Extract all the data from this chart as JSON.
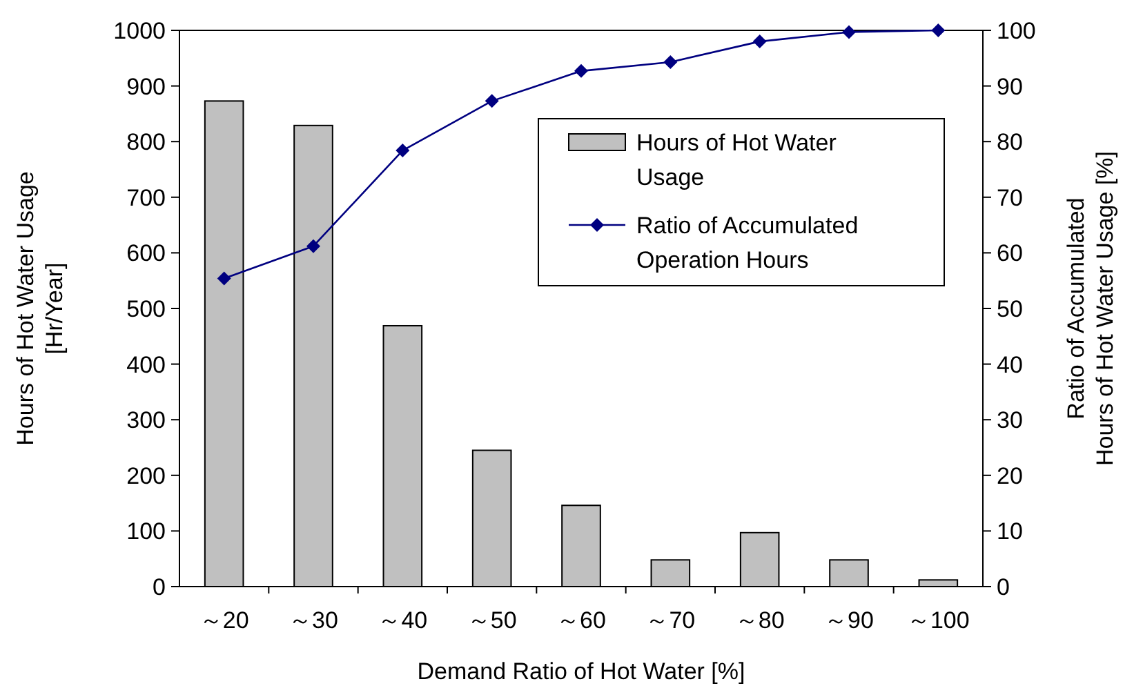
{
  "chart_data": {
    "type": "bar",
    "xlabel": "Demand Ratio of Hot Water [%]",
    "ylabel": "Hours of Hot Water Usage\n[Hr/Year]",
    "y2label": "Ratio of Accumulated\nHours of Hot Water Usage [%]",
    "categories": [
      "～20",
      "～30",
      "～40",
      "～50",
      "～60",
      "～70",
      "～80",
      "～90",
      "～100"
    ],
    "series": [
      {
        "name": "Hours of Hot Water Usage",
        "color": "#c0c0c0",
        "values": [
          873,
          829,
          469,
          245,
          146,
          48,
          97,
          48,
          12
        ]
      },
      {
        "name": "Ratio of Accumulated Operation Hours",
        "type": "line",
        "axis": "y2",
        "color": "#000080",
        "marker": "diamond",
        "values": [
          55.4,
          61.2,
          78.4,
          87.3,
          92.7,
          94.3,
          98.0,
          99.7,
          100
        ]
      }
    ],
    "ylim": [
      0,
      1000
    ],
    "yticks": [
      0,
      100,
      200,
      300,
      400,
      500,
      600,
      700,
      800,
      900,
      1000
    ],
    "y2lim": [
      0,
      100
    ],
    "y2ticks": [
      0,
      10,
      20,
      30,
      40,
      50,
      60,
      70,
      80,
      90,
      100
    ],
    "grid": false,
    "legend": "top right"
  }
}
